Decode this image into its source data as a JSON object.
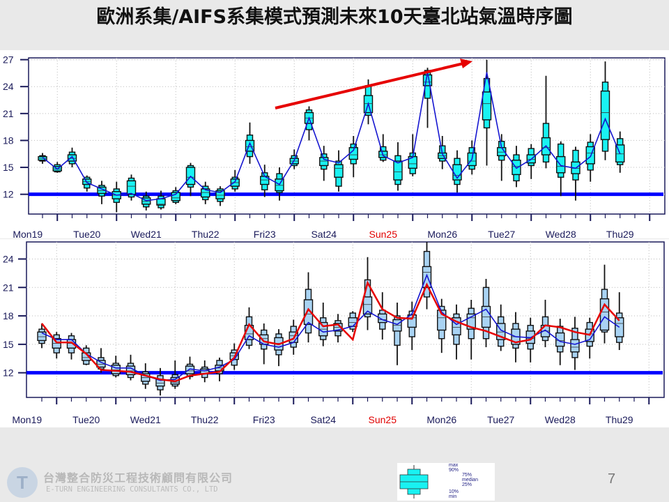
{
  "title": "歐洲系集/AIFS系集模式預測未來10天臺北站氣溫時序圖",
  "colors": {
    "top_box_fill": "#19f2f2",
    "bottom_box_fill": "#a9d3f3",
    "mean_line": "#1515d0",
    "red_line": "#e60000",
    "reference_line": "#0000ff",
    "weekend_label": "#e00000",
    "axis": "#1a1a5a"
  },
  "chart_data": [
    {
      "type": "box",
      "name_hint": "top",
      "box_stat_order": [
        "min",
        "p10",
        "p25",
        "median",
        "p75",
        "p90",
        "max"
      ],
      "ylim": [
        9.8,
        27.2
      ],
      "yticks": [
        "27",
        "24",
        "21",
        "18",
        "15",
        "12"
      ],
      "ytick_values": [
        27,
        24,
        21,
        18,
        15,
        12
      ],
      "xtick_labels": [
        "Mon19",
        "Tue20",
        "Wed21",
        "Thu22",
        "Fri23",
        "Sat24",
        "Sun25",
        "Mon26",
        "Tue27",
        "Wed28",
        "Thu29"
      ],
      "weekend_labels": [
        "Sun25"
      ],
      "grid": true,
      "reference_line": 12,
      "trend_arrow": {
        "color": "#e60000"
      },
      "boxes": [
        [
          15.4,
          15.7,
          15.8,
          16.0,
          16.2,
          16.3,
          16.6
        ],
        [
          14.4,
          14.5,
          14.6,
          14.8,
          15.1,
          15.3,
          15.6
        ],
        [
          15.0,
          15.4,
          15.7,
          16.0,
          16.4,
          16.7,
          17.2
        ],
        [
          12.3,
          12.7,
          13.1,
          13.4,
          13.7,
          13.9,
          14.1
        ],
        [
          10.9,
          11.8,
          12.1,
          12.4,
          12.8,
          13.0,
          13.5
        ],
        [
          10.0,
          11.1,
          11.5,
          11.9,
          12.3,
          12.6,
          13.4
        ],
        [
          11.3,
          11.7,
          12.0,
          12.9,
          13.5,
          13.8,
          14.2
        ],
        [
          10.2,
          10.6,
          10.9,
          11.2,
          11.6,
          11.8,
          12.3
        ],
        [
          10.3,
          10.5,
          10.8,
          10.9,
          11.5,
          11.8,
          12.4
        ],
        [
          10.9,
          11.1,
          11.3,
          11.6,
          12.2,
          12.4,
          12.8
        ],
        [
          11.8,
          12.8,
          13.1,
          13.9,
          15.0,
          15.2,
          15.5
        ],
        [
          10.9,
          11.4,
          11.7,
          12.2,
          12.6,
          12.9,
          13.4
        ],
        [
          10.7,
          11.2,
          11.5,
          11.9,
          12.4,
          12.6,
          12.9
        ],
        [
          12.3,
          12.6,
          12.9,
          13.3,
          13.7,
          13.9,
          14.7
        ],
        [
          15.4,
          16.2,
          16.8,
          17.3,
          18.0,
          18.6,
          20.0
        ],
        [
          11.7,
          12.5,
          13.1,
          13.6,
          14.0,
          14.4,
          15.3
        ],
        [
          11.3,
          12.2,
          12.4,
          13.0,
          13.7,
          14.3,
          15.0
        ],
        [
          14.8,
          15.2,
          15.4,
          15.7,
          16.0,
          16.3,
          17.0
        ],
        [
          18.0,
          19.2,
          19.9,
          20.5,
          21.1,
          21.4,
          21.8
        ],
        [
          13.5,
          14.8,
          15.2,
          15.7,
          16.1,
          16.5,
          17.4
        ],
        [
          12.3,
          12.9,
          13.9,
          14.9,
          15.3,
          15.7,
          16.9
        ],
        [
          13.9,
          15.4,
          15.9,
          16.4,
          17.2,
          17.6,
          18.5
        ],
        [
          19.8,
          20.8,
          21.1,
          22.1,
          23.0,
          24.1,
          24.8
        ],
        [
          15.6,
          15.8,
          16.1,
          16.4,
          16.8,
          17.3,
          18.7
        ],
        [
          12.4,
          13.1,
          13.6,
          14.5,
          15.7,
          16.3,
          17.8
        ],
        [
          14.0,
          14.3,
          14.9,
          15.4,
          16.2,
          16.6,
          18.7
        ],
        [
          19.4,
          22.7,
          24.1,
          24.5,
          25.3,
          25.8,
          26.1
        ],
        [
          14.8,
          15.7,
          16.0,
          16.3,
          16.6,
          17.4,
          18.5
        ],
        [
          12.2,
          13.1,
          13.6,
          14.1,
          15.3,
          16.0,
          16.9
        ],
        [
          14.2,
          14.8,
          15.2,
          15.7,
          16.6,
          17.2,
          18.0
        ],
        [
          15.2,
          19.4,
          20.3,
          22.1,
          23.4,
          24.9,
          27.0
        ],
        [
          13.5,
          15.8,
          16.3,
          16.7,
          17.2,
          17.9,
          18.7
        ],
        [
          12.8,
          13.5,
          14.2,
          15.1,
          15.8,
          16.4,
          17.4
        ],
        [
          13.7,
          15.2,
          15.5,
          15.9,
          16.4,
          17.1,
          17.6
        ],
        [
          14.9,
          15.6,
          16.4,
          17.2,
          18.3,
          19.9,
          25.2
        ],
        [
          11.8,
          13.9,
          14.4,
          15.1,
          16.2,
          17.6,
          17.9
        ],
        [
          11.3,
          13.6,
          14.3,
          14.9,
          15.6,
          16.9,
          17.3
        ],
        [
          13.4,
          14.7,
          15.4,
          16.6,
          17.3,
          17.8,
          18.7
        ],
        [
          15.8,
          16.8,
          18.1,
          21.1,
          23.5,
          24.5,
          26.8
        ],
        [
          14.4,
          15.3,
          15.6,
          16.5,
          17.5,
          18.2,
          19.0
        ]
      ],
      "series": [
        {
          "color": "#1515d0",
          "values": [
            16.1,
            14.8,
            16.2,
            13.3,
            12.6,
            11.9,
            12.1,
            11.3,
            11.5,
            12.0,
            14.0,
            12.5,
            12.2,
            13.4,
            17.7,
            14.0,
            13.1,
            15.8,
            20.5,
            15.9,
            15.5,
            16.9,
            22.1,
            16.3,
            15.5,
            16.1,
            25.6,
            16.5,
            13.8,
            15.9,
            25.6,
            17.2,
            14.9,
            15.9,
            17.4,
            15.2,
            14.9,
            16.2,
            20.4,
            16.5
          ]
        }
      ]
    },
    {
      "type": "box",
      "name_hint": "bottom",
      "box_stat_order": [
        "min",
        "p10",
        "p25",
        "median",
        "p75",
        "p90",
        "max"
      ],
      "ylim": [
        9.4,
        25.8
      ],
      "yticks": [
        "24",
        "21",
        "18",
        "15",
        "12"
      ],
      "ytick_values": [
        24,
        21,
        18,
        15,
        12
      ],
      "xtick_labels": [
        "Mon19",
        "Tue20",
        "Wed21",
        "Thu22",
        "Fri23",
        "Sat24",
        "Sun25",
        "Mon26",
        "Tue27",
        "Wed28",
        "Thu29"
      ],
      "weekend_labels": [
        "Sun25"
      ],
      "grid": true,
      "reference_line": 12,
      "boxes": [
        [
          14.6,
          15.1,
          15.4,
          15.8,
          16.3,
          16.6,
          17.2
        ],
        [
          13.5,
          14.1,
          14.6,
          15.1,
          15.6,
          16.0,
          16.3
        ],
        [
          13.4,
          14.1,
          14.6,
          15.1,
          15.5,
          15.9,
          16.2
        ],
        [
          12.8,
          12.9,
          13.3,
          13.6,
          14.1,
          14.6,
          14.9
        ],
        [
          12.0,
          12.4,
          12.6,
          12.9,
          13.3,
          13.6,
          14.6
        ],
        [
          11.5,
          11.7,
          11.9,
          12.3,
          12.8,
          13.0,
          13.8
        ],
        [
          11.2,
          11.5,
          11.8,
          12.2,
          12.7,
          13.0,
          13.9
        ],
        [
          10.3,
          10.8,
          11.1,
          11.5,
          11.9,
          12.1,
          13.0
        ],
        [
          9.6,
          10.2,
          10.6,
          10.9,
          11.3,
          11.7,
          12.5
        ],
        [
          10.3,
          10.6,
          10.8,
          11.0,
          11.5,
          11.8,
          13.3
        ],
        [
          11.3,
          11.6,
          11.9,
          12.2,
          12.7,
          12.9,
          13.7
        ],
        [
          11.0,
          11.5,
          11.9,
          12.2,
          12.4,
          12.6,
          13.3
        ],
        [
          11.1,
          11.9,
          12.2,
          12.5,
          12.8,
          13.3,
          13.6
        ],
        [
          12.3,
          12.8,
          13.4,
          13.8,
          14.1,
          14.4,
          15.1
        ],
        [
          14.5,
          14.9,
          15.5,
          16.1,
          17.0,
          17.9,
          18.9
        ],
        [
          12.9,
          14.5,
          15.0,
          15.6,
          16.0,
          16.5,
          17.2
        ],
        [
          12.7,
          13.9,
          14.4,
          15.1,
          15.7,
          16.1,
          16.6
        ],
        [
          13.9,
          14.7,
          15.2,
          15.9,
          16.3,
          16.9,
          17.6
        ],
        [
          15.2,
          16.2,
          17.1,
          18.2,
          19.7,
          20.8,
          22.6
        ],
        [
          14.8,
          15.5,
          15.9,
          16.6,
          17.3,
          17.8,
          19.4
        ],
        [
          15.2,
          15.9,
          16.4,
          16.8,
          17.2,
          17.5,
          18.2
        ],
        [
          16.3,
          16.6,
          16.9,
          17.3,
          17.8,
          18.3,
          18.5
        ],
        [
          16.5,
          17.9,
          18.2,
          19.2,
          20.0,
          21.8,
          24.2
        ],
        [
          15.5,
          16.6,
          17.3,
          17.6,
          18.2,
          18.6,
          20.5
        ],
        [
          12.8,
          14.9,
          16.4,
          17.0,
          17.6,
          18.0,
          19.4
        ],
        [
          14.4,
          15.8,
          16.8,
          17.8,
          18.1,
          18.5,
          19.5
        ],
        [
          18.7,
          20.0,
          21.0,
          22.6,
          23.2,
          24.8,
          25.8
        ],
        [
          14.1,
          15.6,
          16.5,
          17.8,
          18.6,
          19.0,
          19.8
        ],
        [
          13.4,
          15.0,
          16.0,
          16.8,
          17.8,
          18.2,
          19.2
        ],
        [
          13.4,
          15.6,
          16.6,
          17.8,
          18.2,
          18.8,
          19.7
        ],
        [
          14.7,
          15.6,
          16.8,
          17.9,
          19.0,
          21.0,
          21.9
        ],
        [
          14.3,
          14.8,
          15.5,
          16.3,
          17.2,
          17.9,
          19.2
        ],
        [
          13.1,
          14.6,
          15.0,
          15.8,
          16.6,
          17.2,
          18.4
        ],
        [
          13.1,
          14.5,
          15.1,
          15.6,
          16.4,
          17.0,
          17.8
        ],
        [
          14.7,
          15.4,
          15.8,
          16.4,
          17.0,
          17.9,
          19.7
        ],
        [
          12.8,
          14.2,
          14.8,
          15.4,
          16.2,
          16.9,
          17.7
        ],
        [
          12.3,
          13.6,
          14.2,
          14.7,
          15.5,
          16.7,
          17.9
        ],
        [
          13.5,
          14.8,
          15.3,
          16.1,
          16.6,
          17.3,
          17.8
        ],
        [
          15.1,
          16.3,
          16.5,
          18.4,
          19.8,
          20.8,
          23.4
        ],
        [
          14.4,
          15.2,
          15.8,
          17.2,
          17.8,
          18.3,
          20.5
        ]
      ],
      "series": [
        {
          "color": "#1515d0",
          "values": [
            16.2,
            15.5,
            15.5,
            14.0,
            13.1,
            12.5,
            12.5,
            11.7,
            11.2,
            11.3,
            12.4,
            12.2,
            12.6,
            13.4,
            15.9,
            15.0,
            14.7,
            15.2,
            17.3,
            16.3,
            16.5,
            16.9,
            18.5,
            17.6,
            17.1,
            18.2,
            22.3,
            18.4,
            17.1,
            17.9,
            18.7,
            16.5,
            15.8,
            15.7,
            16.5,
            15.3,
            15.0,
            15.5,
            17.9,
            16.8
          ]
        },
        {
          "color": "#e60000",
          "values": [
            17.2,
            15.2,
            15.2,
            14.0,
            12.3,
            12.2,
            12.1,
            11.7,
            11.3,
            11.1,
            11.7,
            11.9,
            12.1,
            13.6,
            17.1,
            15.3,
            15.0,
            15.6,
            18.7,
            16.9,
            17.1,
            15.5,
            21.5,
            18.7,
            17.8,
            17.7,
            21.3,
            18.2,
            17.4,
            16.8,
            16.4,
            15.8,
            15.2,
            15.5,
            17.0,
            16.8,
            16.3,
            16.0,
            19.2,
            17.5
          ]
        }
      ]
    }
  ],
  "footer": {
    "company_cn": "台灣整合防災工程技術顧問有限公司",
    "company_en": "E-TURN ENGINEERING CONSULTANTS CO., LTD",
    "logo_letter": "T",
    "page_number": "7",
    "legend": {
      "max": "max",
      "p90": "90%",
      "p75": "75%",
      "median": "median",
      "p25": "25%",
      "p10": "10%",
      "min": "min"
    }
  }
}
